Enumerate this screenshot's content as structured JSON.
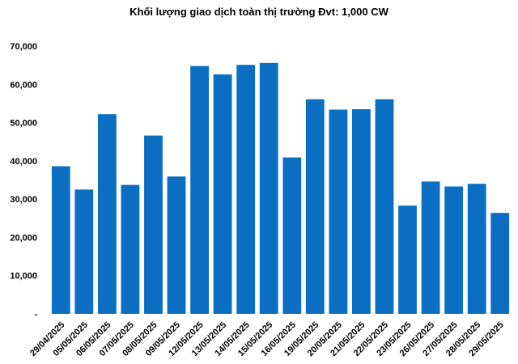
{
  "chart_data": {
    "type": "bar",
    "title": "Khối lượng giao dịch toàn thị trường Đvt: 1,000 CW",
    "xlabel": "",
    "ylabel": "",
    "categories": [
      "29/04/2025",
      "05/05/2025",
      "06/05/2025",
      "07/05/2025",
      "08/05/2025",
      "09/05/2025",
      "12/05/2025",
      "13/05/2025",
      "14/05/2025",
      "15/05/2025",
      "16/05/2025",
      "19/05/2025",
      "20/05/2025",
      "21/05/2025",
      "22/05/2025",
      "23/05/2025",
      "26/05/2025",
      "27/05/2025",
      "28/05/2025",
      "29/05/2025"
    ],
    "values": [
      38600,
      32500,
      52200,
      33700,
      46600,
      35900,
      64800,
      62600,
      65100,
      65600,
      40900,
      56100,
      53400,
      53500,
      56100,
      28300,
      34600,
      33300,
      34000,
      26400
    ],
    "ylim": [
      0,
      70000
    ],
    "yticks": [
      "-",
      "10,000",
      "20,000",
      "30,000",
      "40,000",
      "50,000",
      "60,000",
      "70,000"
    ],
    "bar_color": "#0A6FC2",
    "grid": false,
    "legend": "none"
  }
}
